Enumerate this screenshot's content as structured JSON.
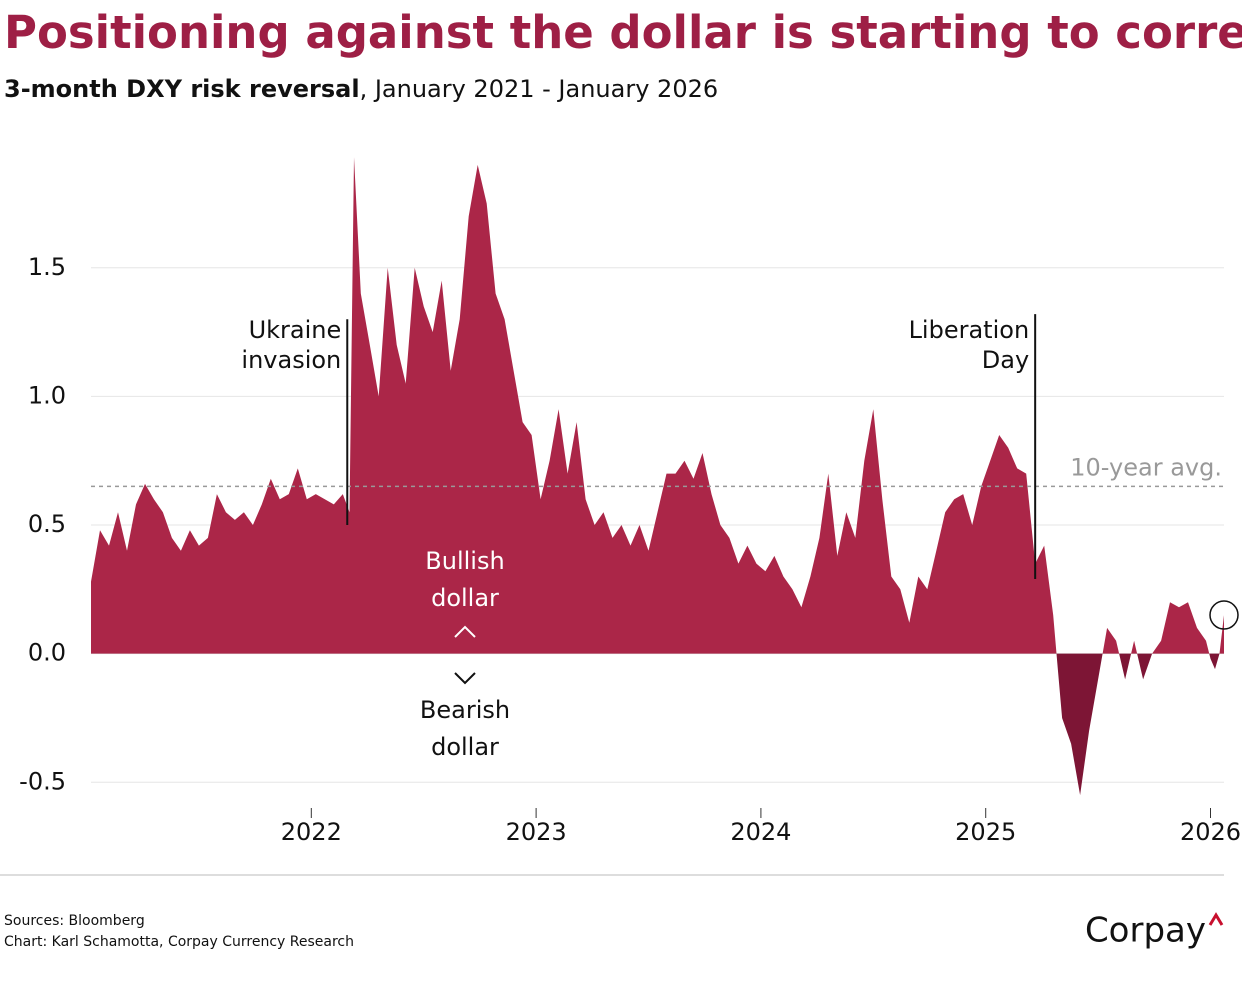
{
  "chart_data": {
    "type": "area",
    "title": "Positioning against the dollar is starting to correct.",
    "subtitle_bold": "3-month DXY risk reversal",
    "subtitle_rest": ", January 2021 - January 2026",
    "x": [
      2021.02,
      2021.06,
      2021.1,
      2021.14,
      2021.18,
      2021.22,
      2021.26,
      2021.3,
      2021.34,
      2021.38,
      2021.42,
      2021.46,
      2021.5,
      2021.54,
      2021.58,
      2021.62,
      2021.66,
      2021.7,
      2021.74,
      2021.78,
      2021.82,
      2021.86,
      2021.9,
      2021.94,
      2021.98,
      2022.02,
      2022.06,
      2022.1,
      2022.14,
      2022.17,
      2022.19,
      2022.22,
      2022.26,
      2022.3,
      2022.34,
      2022.38,
      2022.42,
      2022.46,
      2022.5,
      2022.54,
      2022.58,
      2022.62,
      2022.66,
      2022.7,
      2022.74,
      2022.78,
      2022.82,
      2022.86,
      2022.9,
      2022.94,
      2022.98,
      2023.02,
      2023.06,
      2023.1,
      2023.14,
      2023.18,
      2023.22,
      2023.26,
      2023.3,
      2023.34,
      2023.38,
      2023.42,
      2023.46,
      2023.5,
      2023.54,
      2023.58,
      2023.62,
      2023.66,
      2023.7,
      2023.74,
      2023.78,
      2023.82,
      2023.86,
      2023.9,
      2023.94,
      2023.98,
      2024.02,
      2024.06,
      2024.1,
      2024.14,
      2024.18,
      2024.22,
      2024.26,
      2024.3,
      2024.34,
      2024.38,
      2024.42,
      2024.46,
      2024.5,
      2024.54,
      2024.58,
      2024.62,
      2024.66,
      2024.7,
      2024.74,
      2024.78,
      2024.82,
      2024.86,
      2024.9,
      2024.94,
      2024.98,
      2025.02,
      2025.06,
      2025.1,
      2025.14,
      2025.18,
      2025.22,
      2025.26,
      2025.3,
      2025.32,
      2025.34,
      2025.38,
      2025.42,
      2025.46,
      2025.5,
      2025.54,
      2025.58,
      2025.62,
      2025.66,
      2025.7,
      2025.74,
      2025.78,
      2025.82,
      2025.86,
      2025.9,
      2025.94,
      2025.98,
      2026.0,
      2026.02,
      2026.04,
      2026.06
    ],
    "series": [
      {
        "name": "3-month DXY risk reversal",
        "color": "#ab2648",
        "negative_color": "#7d1535",
        "values": [
          0.28,
          0.48,
          0.42,
          0.55,
          0.4,
          0.58,
          0.66,
          0.6,
          0.55,
          0.45,
          0.4,
          0.48,
          0.42,
          0.45,
          0.62,
          0.55,
          0.52,
          0.55,
          0.5,
          0.58,
          0.68,
          0.6,
          0.62,
          0.72,
          0.6,
          0.62,
          0.6,
          0.58,
          0.62,
          0.55,
          1.93,
          1.4,
          1.2,
          1.0,
          1.5,
          1.2,
          1.05,
          1.5,
          1.35,
          1.25,
          1.45,
          1.1,
          1.3,
          1.7,
          1.9,
          1.75,
          1.4,
          1.3,
          1.1,
          0.9,
          0.85,
          0.6,
          0.75,
          0.95,
          0.7,
          0.9,
          0.6,
          0.5,
          0.55,
          0.45,
          0.5,
          0.42,
          0.5,
          0.4,
          0.55,
          0.7,
          0.7,
          0.75,
          0.68,
          0.78,
          0.62,
          0.5,
          0.45,
          0.35,
          0.42,
          0.35,
          0.32,
          0.38,
          0.3,
          0.25,
          0.18,
          0.3,
          0.45,
          0.7,
          0.38,
          0.55,
          0.45,
          0.75,
          0.95,
          0.6,
          0.3,
          0.25,
          0.12,
          0.3,
          0.25,
          0.4,
          0.55,
          0.6,
          0.62,
          0.5,
          0.65,
          0.75,
          0.85,
          0.8,
          0.72,
          0.7,
          0.35,
          0.42,
          0.15,
          -0.05,
          -0.25,
          -0.35,
          -0.55,
          -0.3,
          -0.1,
          0.1,
          0.05,
          -0.1,
          0.05,
          -0.1,
          0.0,
          0.05,
          0.2,
          0.18,
          0.2,
          0.1,
          0.05,
          -0.02,
          -0.06,
          0.0,
          0.15
        ]
      }
    ],
    "xlim": [
      2021.02,
      2026.06
    ],
    "xticks": [
      2022,
      2023,
      2024,
      2025,
      2026
    ],
    "ylim": [
      -0.6,
      1.95
    ],
    "yticks": [
      -0.5,
      {
        "value": 0,
        "label": "0.0"
      },
      0.5,
      {
        "value": 1,
        "label": "1.0"
      },
      1.5
    ],
    "grid": true,
    "average": 0.65,
    "average_label": "10-year avg.",
    "annotations": [
      {
        "lines": [
          "Ukraine",
          "invasion"
        ],
        "x": 2022.16
      },
      {
        "lines": [
          "Liberation",
          "Day"
        ],
        "x": 2025.22
      }
    ],
    "bullish_label": [
      "Bullish",
      "dollar"
    ],
    "bearish_label": [
      "Bearish",
      "dollar"
    ],
    "sources": "Sources: Bloomberg",
    "credit": "Chart: Karl Schamotta, Corpay Currency Research",
    "brand": "Corpay"
  }
}
